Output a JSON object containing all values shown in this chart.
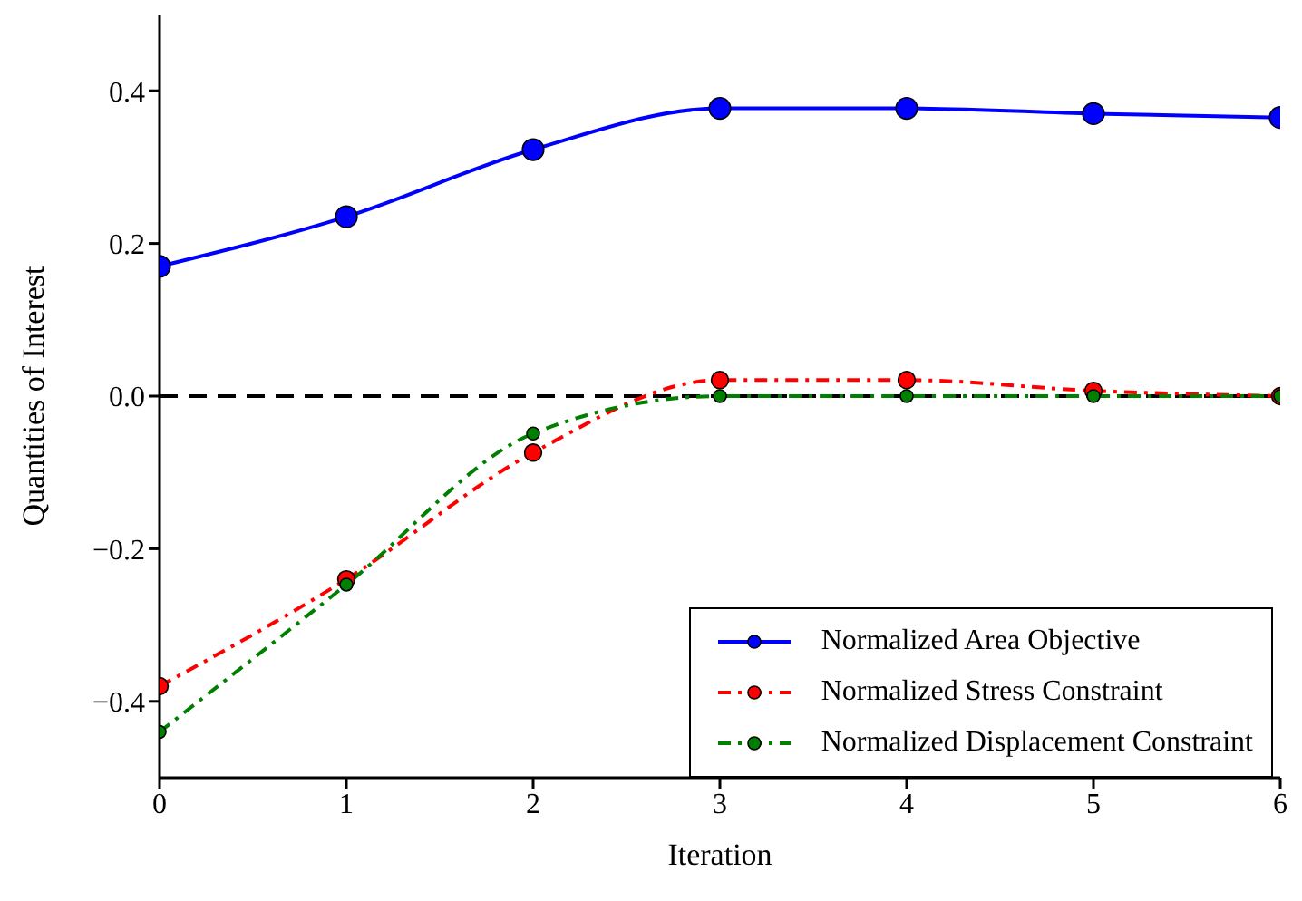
{
  "chart_data": {
    "type": "line",
    "xlabel": "Iteration",
    "ylabel": "Quantities of Interest",
    "x": [
      0,
      1,
      2,
      3,
      4,
      5,
      6
    ],
    "series": [
      {
        "name": "Normalized Area Objective",
        "color": "#0000ff",
        "line_style": "solid",
        "values": [
          0.17,
          0.235,
          0.323,
          0.377,
          0.377,
          0.37,
          0.365
        ]
      },
      {
        "name": "Normalized Stress Constraint",
        "color": "#ff0000",
        "line_style": "dashed",
        "values": [
          -0.38,
          -0.24,
          -0.074,
          0.021,
          0.021,
          0.007,
          0
        ]
      },
      {
        "name": "Normalized Displacement Constraint",
        "color": "#008000",
        "line_style": "dashed",
        "values": [
          -0.44,
          -0.247,
          -0.049,
          0,
          0,
          0,
          0
        ]
      }
    ],
    "xlim": [
      0,
      6
    ],
    "xticks": [
      0,
      1,
      2,
      3,
      4,
      5,
      6
    ],
    "ylim": [
      -0.5,
      0.5
    ],
    "yticks": [
      {
        "value": -0.4,
        "label": "−0.4"
      },
      {
        "value": -0.2,
        "label": "−0.2"
      },
      {
        "value": 0,
        "label": "0.0"
      },
      {
        "value": 0.2,
        "label": "0.2"
      },
      {
        "value": 0.4,
        "label": "0.4"
      }
    ],
    "ref_lines": [
      {
        "axis": "y",
        "value": 0,
        "color": "#000000",
        "line_style": "dashed"
      }
    ],
    "marker": "circle",
    "legend": "bottom right",
    "grid": false
  }
}
